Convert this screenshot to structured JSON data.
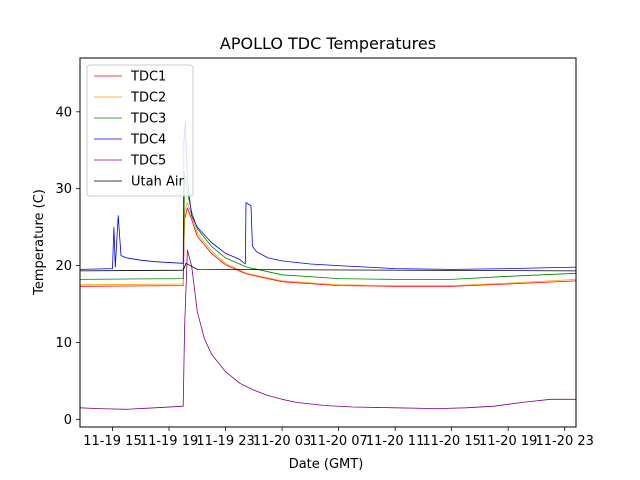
{
  "chart_data": {
    "type": "line",
    "title": "APOLLO TDC Temperatures",
    "xlabel": "Date (GMT)",
    "ylabel": "Temperature (C)",
    "xlim": [
      12.7,
      47.8
    ],
    "ylim": [
      -1,
      47
    ],
    "grid": false,
    "legend_position": "top-left",
    "x_tick_values": [
      15,
      19,
      23,
      27,
      31,
      35,
      39,
      43,
      47
    ],
    "x_tick_labels": [
      "11-19 15",
      "11-19 19",
      "11-19 23",
      "11-20 03",
      "11-20 07",
      "11-20 11",
      "11-20 15",
      "11-20 19",
      "11-20 23"
    ],
    "y_tick_values": [
      0,
      10,
      20,
      30,
      40
    ],
    "y_tick_labels": [
      "0",
      "10",
      "20",
      "30",
      "40"
    ],
    "series": [
      {
        "name": "TDC1",
        "color": "#ff0000",
        "x": [
          12.7,
          20.0,
          20.1,
          20.3,
          20.6,
          21.0,
          22.0,
          23.0,
          24.5,
          27.0,
          31.0,
          35.0,
          39.0,
          43.0,
          47.8
        ],
        "y": [
          17.3,
          17.4,
          26.0,
          27.5,
          26.0,
          23.8,
          21.6,
          20.1,
          18.9,
          17.9,
          17.4,
          17.3,
          17.3,
          17.6,
          18.0
        ]
      },
      {
        "name": "TDC2",
        "color": "#ffa500",
        "x": [
          12.7,
          20.0,
          20.1,
          20.3,
          20.6,
          21.0,
          22.0,
          23.0,
          24.5,
          27.0,
          31.0,
          35.0,
          39.0,
          43.0,
          47.8
        ],
        "y": [
          17.5,
          17.6,
          27.0,
          28.2,
          26.5,
          24.2,
          21.9,
          20.3,
          19.0,
          18.0,
          17.5,
          17.4,
          17.4,
          17.7,
          18.2
        ]
      },
      {
        "name": "TDC3",
        "color": "#008000",
        "x": [
          12.7,
          20.0,
          20.1,
          20.25,
          20.6,
          21.0,
          22.0,
          23.0,
          24.5,
          27.0,
          31.0,
          35.0,
          39.0,
          43.0,
          47.8
        ],
        "y": [
          18.2,
          18.3,
          32.0,
          30.0,
          27.0,
          24.8,
          22.5,
          21.0,
          19.8,
          18.8,
          18.3,
          18.2,
          18.2,
          18.6,
          19.0
        ]
      },
      {
        "name": "TDC4",
        "color": "#0000ff",
        "x": [
          12.7,
          15.0,
          15.1,
          15.2,
          15.4,
          15.6,
          16.0,
          17.0,
          18.0,
          20.0,
          20.05,
          20.15,
          20.3,
          20.6,
          21.0,
          22.0,
          23.0,
          24.0,
          24.4,
          24.45,
          24.6,
          24.8,
          24.9,
          25.2,
          26.0,
          27.0,
          29.0,
          31.0,
          33.0,
          35.0,
          39.0,
          43.0,
          47.8
        ],
        "y": [
          19.5,
          19.6,
          25.0,
          19.8,
          26.5,
          21.3,
          21.0,
          20.7,
          20.5,
          20.3,
          36.0,
          38.8,
          31.0,
          26.5,
          25.0,
          23.0,
          21.6,
          20.8,
          20.2,
          28.2,
          28.0,
          27.8,
          22.5,
          21.8,
          21.0,
          20.6,
          20.2,
          20.0,
          19.8,
          19.6,
          19.5,
          19.6,
          19.8
        ]
      },
      {
        "name": "TDC5",
        "color": "#800080",
        "x": [
          12.7,
          14.0,
          16.0,
          18.0,
          20.0,
          20.1,
          20.3,
          20.6,
          21.0,
          21.5,
          22.0,
          23.0,
          24.0,
          25.0,
          26.0,
          27.0,
          28.0,
          30.0,
          32.0,
          35.0,
          38.0,
          40.0,
          42.0,
          44.0,
          46.0,
          47.8
        ],
        "y": [
          1.5,
          1.4,
          1.3,
          1.5,
          1.7,
          12.0,
          22.0,
          20.0,
          14.0,
          10.5,
          8.5,
          6.2,
          4.7,
          3.8,
          3.1,
          2.6,
          2.2,
          1.8,
          1.6,
          1.5,
          1.4,
          1.5,
          1.7,
          2.2,
          2.6,
          2.6
        ]
      },
      {
        "name": "Utah Air",
        "color": "#000000",
        "x": [
          12.7,
          20.0,
          20.2,
          20.6,
          21.0,
          47.8
        ],
        "y": [
          19.3,
          19.4,
          20.3,
          19.9,
          19.5,
          19.3
        ]
      }
    ]
  }
}
